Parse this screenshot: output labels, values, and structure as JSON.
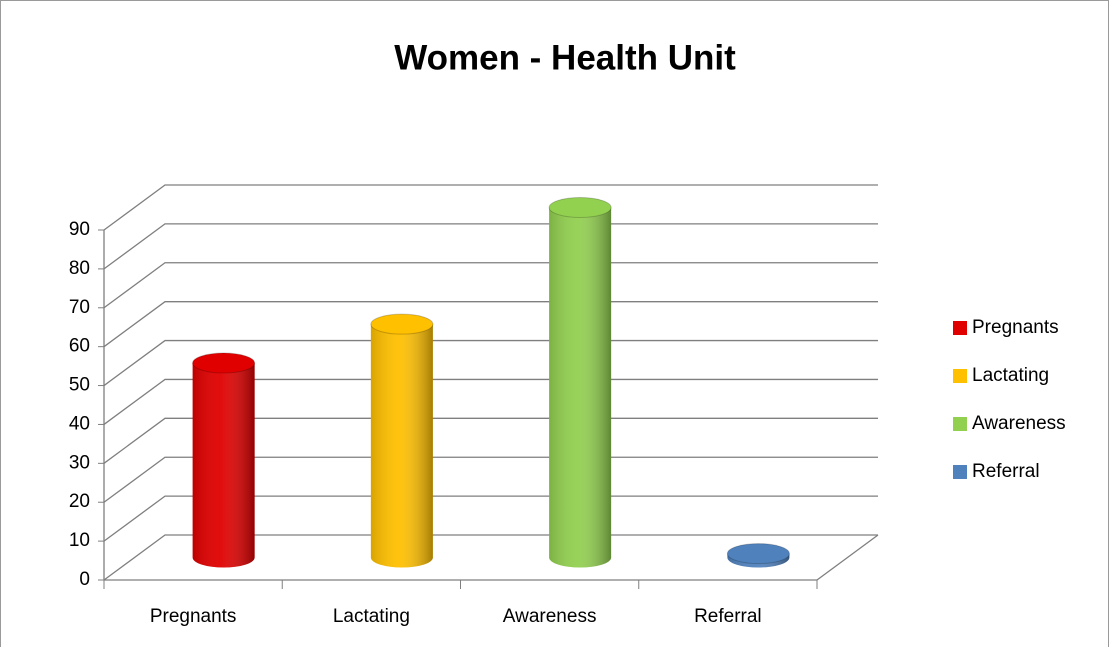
{
  "chart_data": {
    "type": "bar3d_cylinder",
    "title": "Women - Health Unit",
    "categories": [
      "Pregnants",
      "Lactating",
      "Awareness",
      "Referral"
    ],
    "values": [
      50,
      60,
      90,
      1
    ],
    "colors": [
      "#e00000",
      "#ffc000",
      "#92d050",
      "#4f81bd"
    ],
    "ylim": [
      0,
      90
    ],
    "yticks": [
      0,
      10,
      20,
      30,
      40,
      50,
      60,
      70,
      80,
      90
    ],
    "grid": true,
    "legend": "right"
  }
}
